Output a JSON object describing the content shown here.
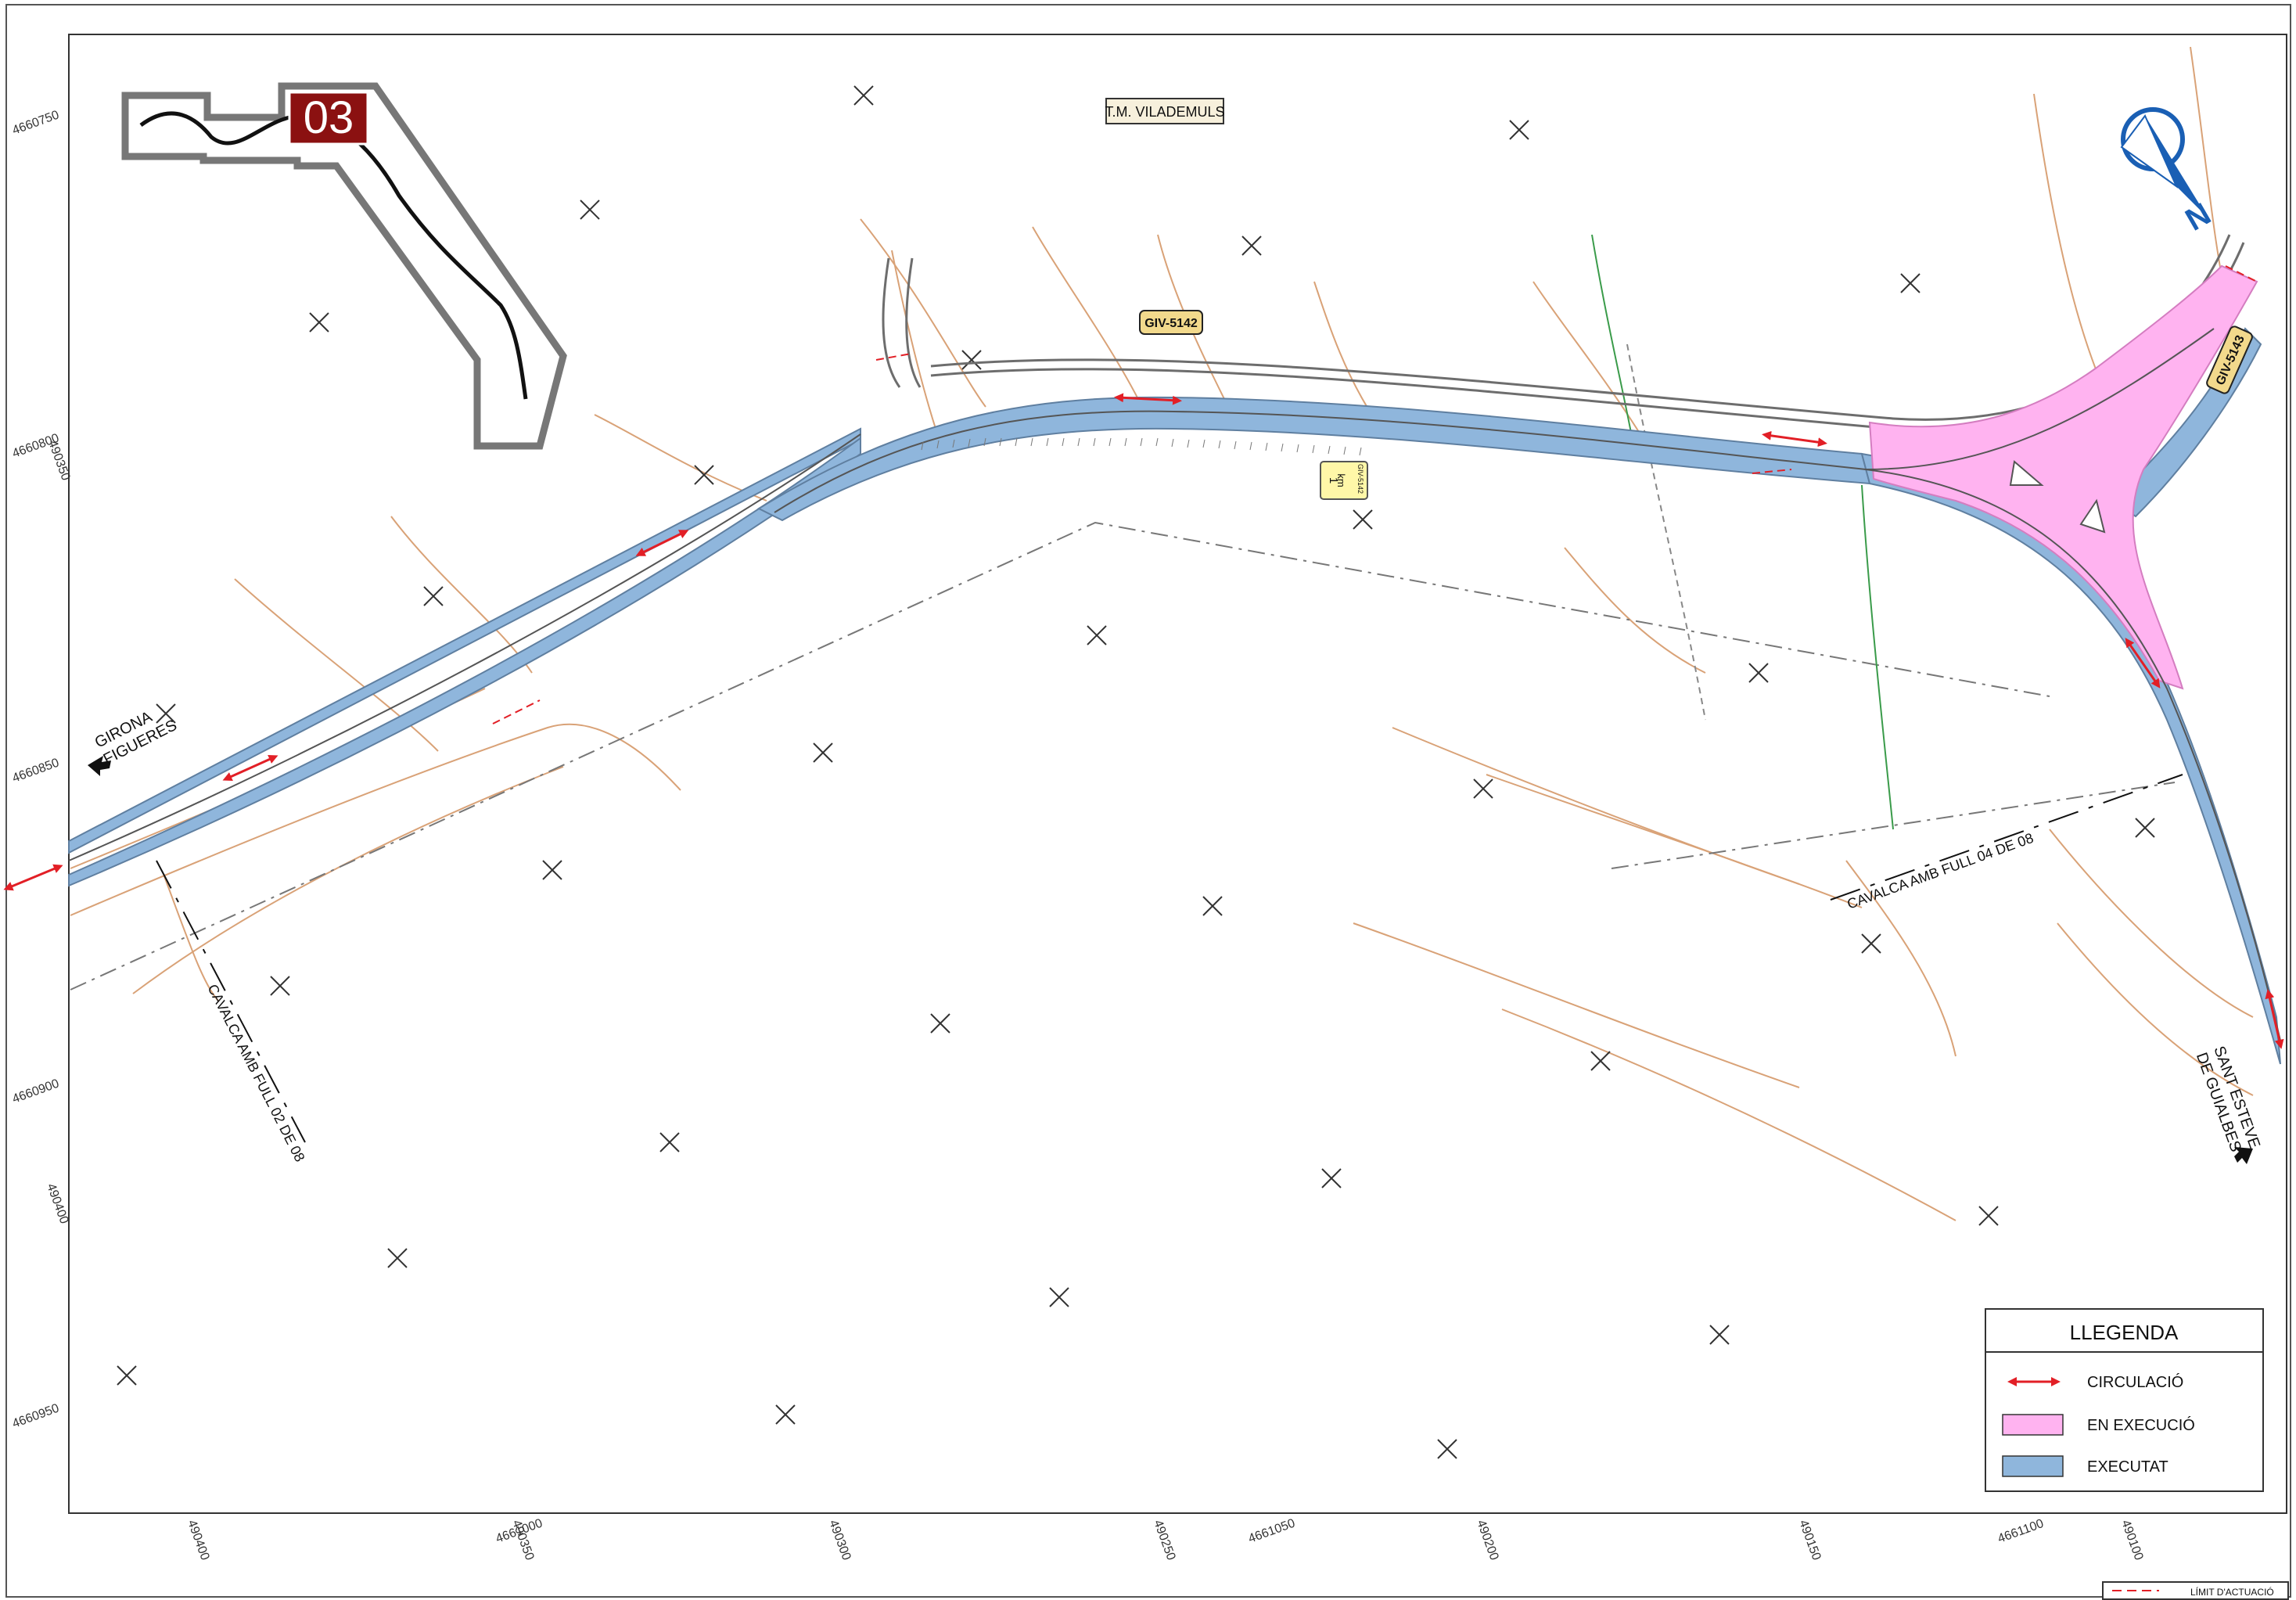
{
  "sheet": {
    "number": "03",
    "municipality": "T.M. VILADEMULS",
    "north_label": "N"
  },
  "roads": {
    "main": "GIV-5142",
    "branch": "GIV-5143",
    "km_marker": {
      "road": "GIV-5142",
      "unit": "km",
      "value": "1"
    }
  },
  "directions": {
    "west_line1": "GIRONA",
    "west_line2": "FIGUERES",
    "east_line1": "SANT ESTEVE",
    "east_line2": "DE GUIALBES"
  },
  "match_lines": {
    "left": "CAVALCA AMB FULL 02 DE 08",
    "right": "CAVALCA AMB FULL 04 DE 08"
  },
  "grid_labels": {
    "left_axis": [
      "4660750",
      "4660800",
      "4660850",
      "4660900",
      "4660950"
    ],
    "left_axis_inner": [
      "490350",
      "490400"
    ],
    "bottom_axis": [
      "490400",
      "4661000",
      "490350",
      "490300",
      "490250",
      "4661050",
      "490200",
      "490150",
      "4661100",
      "490100"
    ]
  },
  "legend": {
    "title": "LLEGENDA",
    "items": [
      {
        "label": "CIRCULACIÓ",
        "symbol": "arrow",
        "color": "#e21f26"
      },
      {
        "label": "EN EXECUCIÓ",
        "symbol": "box",
        "color": "#ffb3f0"
      },
      {
        "label": "EXECUTAT",
        "symbol": "box",
        "color": "#8fb6dc"
      }
    ]
  },
  "footer_legend": {
    "label": "LÍMIT D'ACTUACIÓ",
    "color": "#e21f26"
  },
  "colors": {
    "executed": "#8fb6dc",
    "in_progress": "#ffb3f0",
    "traffic_arrow": "#e21f26",
    "contour": "#d9a277",
    "road_label_bg": "#f2d98c",
    "sheet_badge": "#8b1111"
  }
}
